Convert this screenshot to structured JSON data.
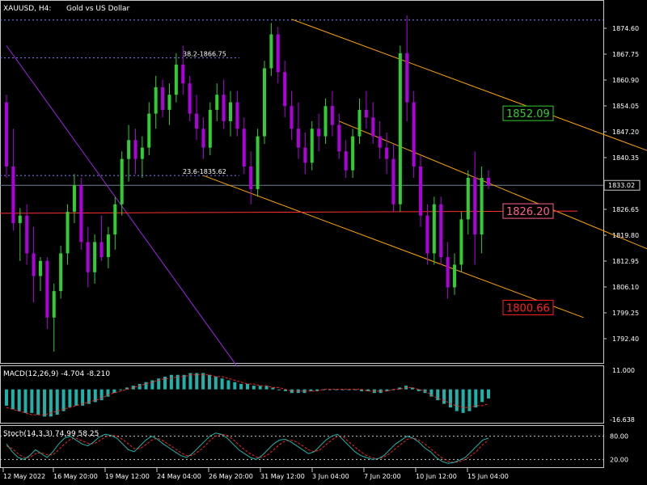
{
  "header": {
    "symbol": "XAUUSD, H4:",
    "description": "Gold vs US Dollar"
  },
  "colors": {
    "bull": "#32cd32",
    "bear": "#b000e0",
    "channel": "#ffa500",
    "hline": "#ff3030",
    "diag": "#a020f0",
    "fib": "#8080ff",
    "macd_hist": "#20b2aa",
    "macd_signal": "#ff2020",
    "stoch_main": "#20b2aa",
    "stoch_signal": "#ff2020"
  },
  "chart_data": {
    "type": "candlestick",
    "price_axis": {
      "ticks": [
        1874.6,
        1867.75,
        1860.9,
        1854.05,
        1847.2,
        1840.35,
        1833.5,
        1826.65,
        1819.8,
        1812.95,
        1806.1,
        1799.25,
        1792.4
      ]
    },
    "current_price": 1833.02,
    "time_axis": [
      "12 May 2022",
      "16 May 20:00",
      "19 May 12:00",
      "24 May 04:00",
      "26 May 20:00",
      "31 May 12:00",
      "3 Jun 04:00",
      "7 Jun 20:00",
      "10 Jun 12:00",
      "15 Jun 04:00"
    ],
    "fib_levels": [
      {
        "label": "38.2-1866.75",
        "value": 1866.75
      },
      {
        "label": "23.6-1835.62",
        "value": 1835.62
      }
    ],
    "top_level": 1876.8,
    "price_labels": [
      {
        "text": "1852.09",
        "value": 1852.09,
        "color": "#32cd32"
      },
      {
        "text": "1826.20",
        "value": 1826.2,
        "color": "#ff6090"
      },
      {
        "text": "1800.66",
        "value": 1800.66,
        "color": "#ff2020"
      }
    ],
    "horizontal_line": {
      "start": 1825.6,
      "end": 1826.2
    },
    "channel_lines": [
      {
        "p1": [
          42,
          1877.0
        ],
        "p2": [
          100,
          1838.5
        ]
      },
      {
        "p1": [
          29,
          1835.6
        ],
        "p2": [
          85,
          1798.0
        ]
      },
      {
        "p1": [
          49,
          1850.0
        ],
        "p2": [
          100,
          1812.0
        ]
      }
    ],
    "diagonal_line": {
      "p1": [
        0,
        1870.0
      ],
      "p2": [
        34,
        1785.0
      ]
    },
    "candles": [
      {
        "o": 1855.0,
        "h": 1857.0,
        "l": 1835.0,
        "c": 1838.0
      },
      {
        "o": 1838.0,
        "h": 1848.0,
        "l": 1821.0,
        "c": 1823.0
      },
      {
        "o": 1823.0,
        "h": 1827.0,
        "l": 1813.0,
        "c": 1825.0
      },
      {
        "o": 1825.0,
        "h": 1828.0,
        "l": 1812.0,
        "c": 1815.0
      },
      {
        "o": 1815.0,
        "h": 1822.0,
        "l": 1802.0,
        "c": 1809.0
      },
      {
        "o": 1809.0,
        "h": 1814.0,
        "l": 1805.0,
        "c": 1813.0
      },
      {
        "o": 1813.0,
        "h": 1814.0,
        "l": 1795.0,
        "c": 1798.0
      },
      {
        "o": 1798.0,
        "h": 1807.0,
        "l": 1789.0,
        "c": 1805.0
      },
      {
        "o": 1805.0,
        "h": 1817.0,
        "l": 1803.0,
        "c": 1815.0
      },
      {
        "o": 1815.0,
        "h": 1828.0,
        "l": 1812.0,
        "c": 1826.0
      },
      {
        "o": 1826.0,
        "h": 1836.0,
        "l": 1823.0,
        "c": 1833.0
      },
      {
        "o": 1833.0,
        "h": 1835.0,
        "l": 1816.0,
        "c": 1818.0
      },
      {
        "o": 1818.0,
        "h": 1822.0,
        "l": 1806.0,
        "c": 1810.0
      },
      {
        "o": 1810.0,
        "h": 1820.0,
        "l": 1807.0,
        "c": 1818.0
      },
      {
        "o": 1818.0,
        "h": 1825.0,
        "l": 1813.0,
        "c": 1814.0
      },
      {
        "o": 1814.0,
        "h": 1822.0,
        "l": 1811.0,
        "c": 1820.0
      },
      {
        "o": 1820.0,
        "h": 1830.0,
        "l": 1816.0,
        "c": 1828.0
      },
      {
        "o": 1828.0,
        "h": 1842.0,
        "l": 1825.0,
        "c": 1840.0
      },
      {
        "o": 1840.0,
        "h": 1849.0,
        "l": 1834.0,
        "c": 1845.0
      },
      {
        "o": 1845.0,
        "h": 1848.0,
        "l": 1836.0,
        "c": 1840.0
      },
      {
        "o": 1840.0,
        "h": 1846.0,
        "l": 1835.0,
        "c": 1843.0
      },
      {
        "o": 1843.0,
        "h": 1855.0,
        "l": 1841.0,
        "c": 1852.0
      },
      {
        "o": 1852.0,
        "h": 1862.0,
        "l": 1848.0,
        "c": 1859.0
      },
      {
        "o": 1859.0,
        "h": 1861.0,
        "l": 1851.0,
        "c": 1853.0
      },
      {
        "o": 1853.0,
        "h": 1860.0,
        "l": 1849.0,
        "c": 1857.0
      },
      {
        "o": 1857.0,
        "h": 1868.0,
        "l": 1855.0,
        "c": 1865.0
      },
      {
        "o": 1865.0,
        "h": 1870.0,
        "l": 1857.0,
        "c": 1860.0
      },
      {
        "o": 1860.0,
        "h": 1862.0,
        "l": 1850.0,
        "c": 1852.0
      },
      {
        "o": 1852.0,
        "h": 1857.0,
        "l": 1845.0,
        "c": 1848.0
      },
      {
        "o": 1848.0,
        "h": 1851.0,
        "l": 1840.0,
        "c": 1843.0
      },
      {
        "o": 1843.0,
        "h": 1855.0,
        "l": 1841.0,
        "c": 1853.0
      },
      {
        "o": 1853.0,
        "h": 1860.0,
        "l": 1850.0,
        "c": 1857.0
      },
      {
        "o": 1857.0,
        "h": 1861.0,
        "l": 1848.0,
        "c": 1850.0
      },
      {
        "o": 1850.0,
        "h": 1858.0,
        "l": 1846.0,
        "c": 1855.0
      },
      {
        "o": 1855.0,
        "h": 1858.0,
        "l": 1846.0,
        "c": 1848.0
      },
      {
        "o": 1848.0,
        "h": 1851.0,
        "l": 1836.0,
        "c": 1838.0
      },
      {
        "o": 1838.0,
        "h": 1842.0,
        "l": 1828.0,
        "c": 1832.0
      },
      {
        "o": 1832.0,
        "h": 1848.0,
        "l": 1830.0,
        "c": 1846.0
      },
      {
        "o": 1846.0,
        "h": 1866.0,
        "l": 1844.0,
        "c": 1864.0
      },
      {
        "o": 1864.0,
        "h": 1876.0,
        "l": 1862.0,
        "c": 1873.0
      },
      {
        "o": 1873.0,
        "h": 1875.0,
        "l": 1860.0,
        "c": 1863.0
      },
      {
        "o": 1863.0,
        "h": 1866.0,
        "l": 1851.0,
        "c": 1854.0
      },
      {
        "o": 1854.0,
        "h": 1858.0,
        "l": 1845.0,
        "c": 1848.0
      },
      {
        "o": 1848.0,
        "h": 1855.0,
        "l": 1840.0,
        "c": 1843.0
      },
      {
        "o": 1843.0,
        "h": 1847.0,
        "l": 1836.0,
        "c": 1839.0
      },
      {
        "o": 1839.0,
        "h": 1850.0,
        "l": 1837.0,
        "c": 1848.0
      },
      {
        "o": 1848.0,
        "h": 1852.0,
        "l": 1842.0,
        "c": 1846.0
      },
      {
        "o": 1846.0,
        "h": 1856.0,
        "l": 1844.0,
        "c": 1854.0
      },
      {
        "o": 1854.0,
        "h": 1858.0,
        "l": 1846.0,
        "c": 1849.0
      },
      {
        "o": 1849.0,
        "h": 1852.0,
        "l": 1840.0,
        "c": 1842.0
      },
      {
        "o": 1842.0,
        "h": 1845.0,
        "l": 1835.0,
        "c": 1837.0
      },
      {
        "o": 1837.0,
        "h": 1848.0,
        "l": 1835.0,
        "c": 1846.0
      },
      {
        "o": 1846.0,
        "h": 1856.0,
        "l": 1844.0,
        "c": 1853.0
      },
      {
        "o": 1853.0,
        "h": 1858.0,
        "l": 1848.0,
        "c": 1851.0
      },
      {
        "o": 1851.0,
        "h": 1855.0,
        "l": 1844.0,
        "c": 1846.0
      },
      {
        "o": 1846.0,
        "h": 1850.0,
        "l": 1840.0,
        "c": 1843.0
      },
      {
        "o": 1843.0,
        "h": 1847.0,
        "l": 1836.0,
        "c": 1840.0
      },
      {
        "o": 1840.0,
        "h": 1844.0,
        "l": 1826.0,
        "c": 1828.0
      },
      {
        "o": 1828.0,
        "h": 1870.0,
        "l": 1826.0,
        "c": 1868.0
      },
      {
        "o": 1868.0,
        "h": 1878.0,
        "l": 1850.0,
        "c": 1855.0
      },
      {
        "o": 1855.0,
        "h": 1858.0,
        "l": 1835.0,
        "c": 1838.0
      },
      {
        "o": 1838.0,
        "h": 1841.0,
        "l": 1822.0,
        "c": 1825.0
      },
      {
        "o": 1825.0,
        "h": 1828.0,
        "l": 1812.0,
        "c": 1815.0
      },
      {
        "o": 1815.0,
        "h": 1830.0,
        "l": 1812.0,
        "c": 1828.0
      },
      {
        "o": 1828.0,
        "h": 1830.0,
        "l": 1812.0,
        "c": 1814.0
      },
      {
        "o": 1814.0,
        "h": 1818.0,
        "l": 1803.0,
        "c": 1806.0
      },
      {
        "o": 1806.0,
        "h": 1815.0,
        "l": 1804.0,
        "c": 1812.0
      },
      {
        "o": 1812.0,
        "h": 1826.0,
        "l": 1810.0,
        "c": 1824.0
      },
      {
        "o": 1824.0,
        "h": 1837.0,
        "l": 1820.0,
        "c": 1835.0
      },
      {
        "o": 1835.0,
        "h": 1842.0,
        "l": 1812.0,
        "c": 1820.0
      },
      {
        "o": 1820.0,
        "h": 1838.0,
        "l": 1815.0,
        "c": 1835.0
      },
      {
        "o": 1835.0,
        "h": 1837.0,
        "l": 1832.0,
        "c": 1833.0
      }
    ],
    "macd": {
      "label": "MACD(12,26,9) -4.704 -8.210",
      "axis": [
        "11.000",
        "-16.638"
      ],
      "range": [
        -16.638,
        11.0
      ],
      "hist": [
        -9,
        -11,
        -12,
        -13,
        -13,
        -14,
        -15,
        -15,
        -14,
        -12,
        -10,
        -9,
        -9,
        -8,
        -7,
        -6,
        -4,
        -2,
        0,
        1,
        2,
        3,
        4,
        5,
        6,
        7,
        8,
        8,
        8,
        9,
        9,
        9,
        8,
        7,
        6,
        5,
        4,
        3,
        3,
        2,
        2,
        2,
        1,
        0,
        -1,
        -2,
        -2,
        -2,
        -1,
        -1,
        0,
        0,
        0,
        0,
        0,
        0,
        -1,
        -1,
        -2,
        -2,
        -1,
        0,
        1,
        2,
        1,
        -1,
        -2,
        -4,
        -6,
        -8,
        -10,
        -12,
        -13,
        -12,
        -10,
        -7,
        -5
      ],
      "signal": [
        -10,
        -11,
        -12,
        -13,
        -14,
        -14,
        -14,
        -13,
        -12,
        -11,
        -10,
        -9,
        -8,
        -7,
        -6,
        -5,
        -3,
        -2,
        -1,
        0,
        1,
        2,
        3,
        4,
        5,
        6,
        6,
        7,
        7,
        8,
        8,
        8,
        8,
        7,
        7,
        6,
        5,
        4,
        3,
        3,
        2,
        2,
        1,
        1,
        0,
        -1,
        -1,
        -1,
        -1,
        -1,
        0,
        0,
        0,
        0,
        0,
        0,
        0,
        -1,
        -1,
        -1,
        -1,
        0,
        0,
        1,
        1,
        0,
        -1,
        -3,
        -5,
        -6,
        -8,
        -9,
        -10,
        -10,
        -9,
        -9,
        -8
      ]
    },
    "stoch": {
      "label": "Stoch(14,3,3) 74.99 58.25",
      "axis": [
        "80.00",
        "20.00"
      ],
      "levels": [
        80,
        20
      ],
      "main": [
        60,
        40,
        25,
        20,
        30,
        45,
        35,
        25,
        40,
        60,
        75,
        80,
        70,
        60,
        55,
        65,
        78,
        85,
        82,
        75,
        60,
        45,
        40,
        55,
        70,
        80,
        72,
        60,
        50,
        40,
        30,
        25,
        35,
        50,
        65,
        80,
        88,
        85,
        75,
        60,
        45,
        35,
        25,
        20,
        30,
        45,
        60,
        70,
        72,
        65,
        55,
        45,
        35,
        40,
        55,
        70,
        80,
        85,
        70,
        55,
        40,
        30,
        25,
        20,
        22,
        30,
        45,
        60,
        70,
        80,
        75,
        65,
        50,
        40,
        25,
        15,
        10,
        12,
        18,
        25,
        40,
        55,
        70,
        75
      ],
      "signal": [
        55,
        48,
        35,
        25,
        25,
        35,
        38,
        32,
        32,
        45,
        60,
        72,
        75,
        68,
        62,
        60,
        68,
        78,
        83,
        80,
        72,
        60,
        48,
        48,
        58,
        70,
        75,
        68,
        58,
        48,
        38,
        30,
        30,
        40,
        52,
        68,
        80,
        85,
        82,
        72,
        58,
        45,
        35,
        26,
        25,
        32,
        45,
        58,
        68,
        70,
        65,
        55,
        45,
        40,
        45,
        58,
        70,
        80,
        78,
        65,
        52,
        40,
        30,
        24,
        22,
        26,
        36,
        48,
        60,
        72,
        76,
        70,
        60,
        48,
        36,
        24,
        15,
        12,
        14,
        20,
        30,
        42,
        58,
        70
      ]
    }
  }
}
